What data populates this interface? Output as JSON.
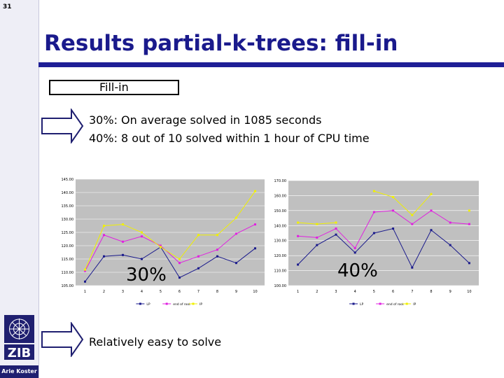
{
  "slide_number": "31",
  "title": "Results partial-k-trees: fill-in",
  "box_label": "Fill-in",
  "bullets": [
    "30%: On average solved in 1085 seconds",
    "40%: 8 out of 10 solved within 1 hour of CPU time"
  ],
  "bottom_text": "Relatively easy to solve",
  "author": "Arie Koster",
  "colors": {
    "title": "#1a1a8c",
    "bar": "#1f1f96",
    "plot_bg": "#c0c0c0",
    "series": [
      "#1a1a8c",
      "#e020e0",
      "#f0f000"
    ]
  },
  "chart_data": [
    {
      "type": "line",
      "overlay_label": "30%",
      "x": [
        1,
        2,
        3,
        4,
        5,
        6,
        7,
        8,
        9,
        10
      ],
      "ylim": [
        105,
        145
      ],
      "yticks": [
        "145.00",
        "140.00",
        "135.00",
        "130.00",
        "125.00",
        "120.00",
        "115.00",
        "110.00",
        "105.00"
      ],
      "series": [
        {
          "values": [
            106.5,
            116,
            116.5,
            115,
            119.5,
            108,
            111.5,
            116,
            113.5,
            119
          ]
        },
        {
          "values": [
            110.5,
            124,
            121.5,
            123.5,
            120,
            113.5,
            116,
            118.5,
            124.5,
            128
          ]
        },
        {
          "values": [
            111,
            127.5,
            128,
            125,
            119.5,
            115,
            124,
            124,
            130.5,
            140.5
          ]
        }
      ],
      "legend": [
        "LP",
        "end of root",
        "IP"
      ],
      "grid": true,
      "legend_position": "bottom"
    },
    {
      "type": "line",
      "overlay_label": "40%",
      "x": [
        1,
        2,
        3,
        4,
        5,
        6,
        7,
        8,
        9,
        10
      ],
      "ylim": [
        100,
        170
      ],
      "yticks": [
        "170.00",
        "160.00",
        "150.00",
        "140.00",
        "130.00",
        "120.00",
        "110.00",
        "100.00"
      ],
      "series": [
        {
          "values": [
            114,
            127,
            134,
            122,
            135,
            138,
            112,
            137,
            127,
            115
          ]
        },
        {
          "values": [
            133,
            132,
            138,
            125,
            149,
            150,
            141,
            150,
            142,
            141
          ]
        },
        {
          "values": [
            142,
            141,
            142,
            null,
            163,
            159,
            147,
            161,
            null,
            150
          ]
        }
      ],
      "legend": [
        "LP",
        "end of root",
        "IP"
      ],
      "grid": true,
      "legend_position": "bottom"
    }
  ]
}
